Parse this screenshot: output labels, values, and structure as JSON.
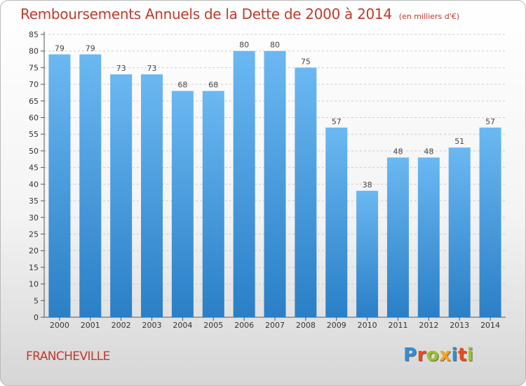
{
  "title": "Remboursements Annuels de la Dette de 2000 à 2014",
  "unit_note": "(en milliers d'€)",
  "location": "FRANCHEVILLE",
  "brand": {
    "name": "Proxiti",
    "letter_colors": [
      "#2d8fd8",
      "#e84c1e",
      "#9ac22a",
      "#f2a41d",
      "#2d8fd8",
      "#e84c1e",
      "#9ac22a"
    ]
  },
  "colors": {
    "bar_light": "#6bb8f2",
    "bar_dark": "#2a7fc6",
    "title": "#c0392b",
    "grid": "#cccccc"
  },
  "chart_data": {
    "type": "bar",
    "categories": [
      "2000",
      "2001",
      "2002",
      "2003",
      "2004",
      "2005",
      "2006",
      "2007",
      "2008",
      "2009",
      "2010",
      "2011",
      "2012",
      "2013",
      "2014"
    ],
    "values": [
      79,
      79,
      73,
      73,
      68,
      68,
      80,
      80,
      75,
      57,
      38,
      48,
      48,
      51,
      57
    ],
    "ylim": [
      0,
      85
    ],
    "yticks": [
      0,
      5,
      10,
      15,
      20,
      25,
      30,
      35,
      40,
      45,
      50,
      55,
      60,
      65,
      70,
      75,
      80,
      85
    ],
    "grid": "horizontal dashed",
    "legend": "none",
    "data_labels": true
  }
}
